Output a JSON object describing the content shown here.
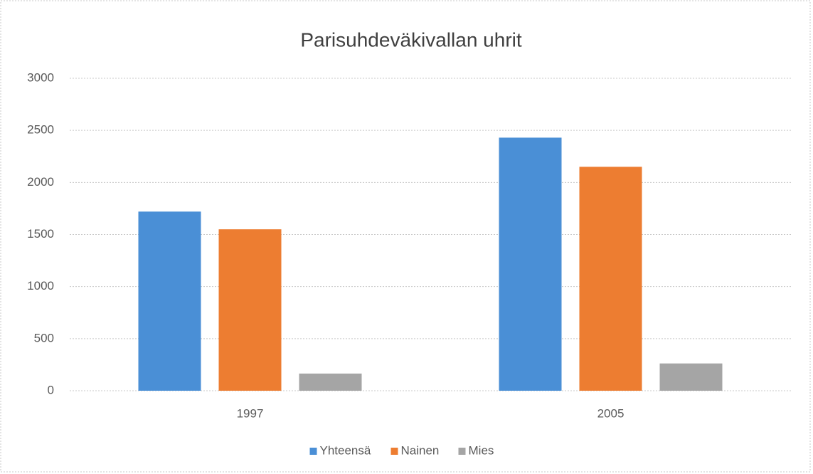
{
  "chart_data": {
    "type": "bar",
    "title": "Parisuhdeväkivallan uhrit",
    "categories": [
      "1997",
      "2005"
    ],
    "series": [
      {
        "name": "Yhteensä",
        "color": "#4a8fd6",
        "values": [
          1720,
          2430
        ]
      },
      {
        "name": "Nainen",
        "color": "#ed7d31",
        "values": [
          1550,
          2150
        ]
      },
      {
        "name": "Mies",
        "color": "#a5a5a5",
        "values": [
          165,
          262
        ]
      }
    ],
    "ylim": [
      0,
      3000
    ],
    "yticks": [
      0,
      500,
      1000,
      1500,
      2000,
      2500,
      3000
    ],
    "grid": true,
    "legend": "bottom"
  }
}
